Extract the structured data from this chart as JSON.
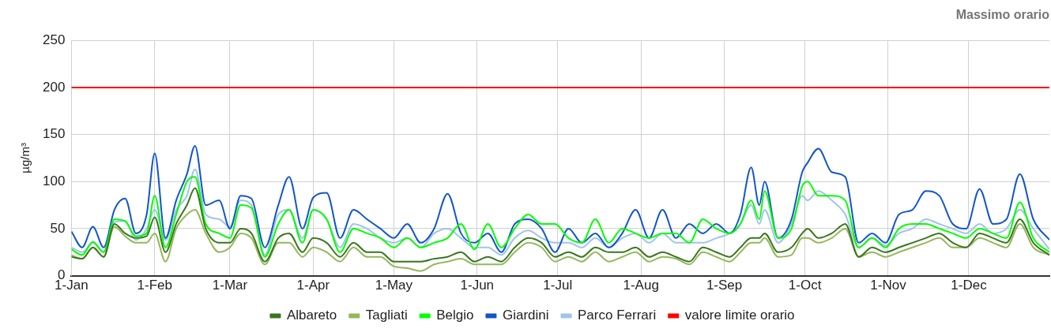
{
  "chart_data": {
    "type": "line",
    "title": "Massimo orario",
    "ylabel": "µg/m³",
    "x": [
      "--01-01",
      "--01-05",
      "--01-09",
      "--01-13",
      "--01-17",
      "--01-21",
      "--01-25",
      "--01-29",
      "--02-01",
      "--02-05",
      "--02-09",
      "--02-13",
      "--02-16",
      "--02-20",
      "--02-25",
      "--03-01",
      "--03-05",
      "--03-09",
      "--03-14",
      "--03-19",
      "--03-23",
      "--03-28",
      "--04-01",
      "--04-06",
      "--04-11",
      "--04-16",
      "--04-21",
      "--04-26",
      "--05-01",
      "--05-06",
      "--05-11",
      "--05-16",
      "--05-21",
      "--05-26",
      "--05-31",
      "--06-05",
      "--06-10",
      "--06-15",
      "--06-20",
      "--06-25",
      "--06-30",
      "--07-05",
      "--07-10",
      "--07-15",
      "--07-20",
      "--07-25",
      "--07-30",
      "--08-04",
      "--08-09",
      "--08-14",
      "--08-19",
      "--08-24",
      "--08-29",
      "--09-03",
      "--09-07",
      "--09-11",
      "--09-14",
      "--09-16",
      "--09-21",
      "--09-26",
      "--09-30",
      "--10-02",
      "--10-06",
      "--10-11",
      "--10-16",
      "--10-21",
      "--10-26",
      "--10-31",
      "--11-05",
      "--11-10",
      "--11-15",
      "--11-20",
      "--11-25",
      "--11-30",
      "--12-05",
      "--12-10",
      "--12-15",
      "--12-20",
      "--12-25",
      "--12-31"
    ],
    "series": [
      {
        "name": "Albareto",
        "color": "#38761d",
        "values": [
          20,
          18,
          30,
          20,
          55,
          45,
          40,
          42,
          62,
          25,
          55,
          75,
          93,
          50,
          35,
          35,
          50,
          45,
          15,
          40,
          45,
          25,
          40,
          35,
          20,
          35,
          25,
          25,
          15,
          15,
          15,
          18,
          20,
          25,
          15,
          20,
          15,
          30,
          40,
          35,
          20,
          25,
          20,
          30,
          25,
          25,
          30,
          20,
          25,
          20,
          15,
          30,
          25,
          20,
          30,
          40,
          40,
          45,
          25,
          30,
          45,
          50,
          40,
          45,
          55,
          20,
          30,
          25,
          30,
          35,
          40,
          45,
          35,
          30,
          45,
          40,
          35,
          60,
          35,
          22
        ]
      },
      {
        "name": "Tagliati",
        "color": "#93b85a",
        "values": [
          22,
          18,
          30,
          20,
          52,
          42,
          35,
          35,
          45,
          15,
          50,
          65,
          70,
          45,
          25,
          30,
          45,
          40,
          12,
          35,
          35,
          20,
          30,
          25,
          15,
          30,
          20,
          20,
          10,
          8,
          5,
          12,
          15,
          18,
          12,
          12,
          12,
          25,
          35,
          30,
          15,
          20,
          15,
          25,
          15,
          20,
          25,
          15,
          20,
          18,
          12,
          25,
          20,
          15,
          25,
          35,
          35,
          40,
          20,
          22,
          40,
          40,
          35,
          40,
          50,
          20,
          25,
          20,
          25,
          30,
          35,
          40,
          30,
          30,
          40,
          35,
          30,
          55,
          30,
          22
        ]
      },
      {
        "name": "Belgio",
        "color": "#00ff00",
        "values": [
          28,
          22,
          36,
          25,
          60,
          58,
          42,
          45,
          85,
          30,
          65,
          100,
          105,
          55,
          45,
          40,
          75,
          72,
          20,
          55,
          70,
          35,
          70,
          60,
          25,
          50,
          45,
          40,
          30,
          40,
          30,
          35,
          40,
          55,
          28,
          55,
          30,
          50,
          65,
          55,
          55,
          40,
          35,
          60,
          35,
          50,
          45,
          40,
          45,
          45,
          35,
          60,
          50,
          45,
          55,
          80,
          60,
          90,
          40,
          50,
          95,
          100,
          85,
          85,
          80,
          30,
          40,
          30,
          50,
          55,
          55,
          50,
          45,
          40,
          50,
          45,
          40,
          78,
          40,
          25
        ]
      },
      {
        "name": "Giardini",
        "color": "#1155cc",
        "values": [
          47,
          30,
          52,
          30,
          70,
          82,
          45,
          65,
          130,
          40,
          80,
          108,
          138,
          75,
          80,
          50,
          85,
          82,
          30,
          75,
          105,
          50,
          83,
          88,
          40,
          70,
          60,
          50,
          40,
          55,
          35,
          50,
          87,
          45,
          35,
          45,
          25,
          55,
          60,
          50,
          25,
          50,
          35,
          45,
          30,
          45,
          70,
          40,
          70,
          40,
          55,
          45,
          55,
          45,
          65,
          115,
          75,
          100,
          40,
          60,
          110,
          120,
          135,
          110,
          105,
          35,
          45,
          35,
          65,
          70,
          90,
          85,
          55,
          50,
          92,
          55,
          60,
          108,
          60,
          38
        ]
      },
      {
        "name": "Parco Ferrari",
        "color": "#9fc5e8",
        "values": [
          30,
          25,
          35,
          25,
          57,
          58,
          38,
          50,
          70,
          38,
          70,
          85,
          113,
          65,
          60,
          52,
          80,
          75,
          22,
          65,
          70,
          40,
          70,
          60,
          30,
          55,
          50,
          40,
          35,
          40,
          30,
          45,
          50,
          40,
          30,
          30,
          22,
          40,
          48,
          40,
          35,
          35,
          30,
          40,
          30,
          40,
          45,
          35,
          45,
          35,
          35,
          35,
          40,
          45,
          55,
          75,
          55,
          70,
          35,
          55,
          85,
          80,
          90,
          80,
          65,
          30,
          40,
          32,
          45,
          50,
          60,
          55,
          50,
          45,
          55,
          45,
          50,
          70,
          50,
          28
        ]
      }
    ],
    "ref_lines": [
      {
        "axis": "y",
        "value": 200,
        "label": "valore limite orario",
        "color": "#ff0000"
      }
    ],
    "xlim": [
      "--01-01",
      "--12-31"
    ],
    "xticks": [
      {
        "value": "--01-01",
        "label": "1-Jan"
      },
      {
        "value": "--02-01",
        "label": "1-Feb"
      },
      {
        "value": "--03-01",
        "label": "1-Mar"
      },
      {
        "value": "--04-01",
        "label": "1-Apr"
      },
      {
        "value": "--05-01",
        "label": "1-May"
      },
      {
        "value": "--06-01",
        "label": "1-Jun"
      },
      {
        "value": "--07-01",
        "label": "1-Jul"
      },
      {
        "value": "--08-01",
        "label": "1-Aug"
      },
      {
        "value": "--09-01",
        "label": "1-Sep"
      },
      {
        "value": "--10-01",
        "label": "1-Oct"
      },
      {
        "value": "--11-01",
        "label": "1-Nov"
      },
      {
        "value": "--12-01",
        "label": "1-Dec"
      }
    ],
    "ylim": [
      0,
      250
    ],
    "yticks": [
      0,
      50,
      100,
      150,
      200,
      250
    ],
    "grid": true,
    "legend": "bottom",
    "marker": "none",
    "line_style": "solid"
  }
}
